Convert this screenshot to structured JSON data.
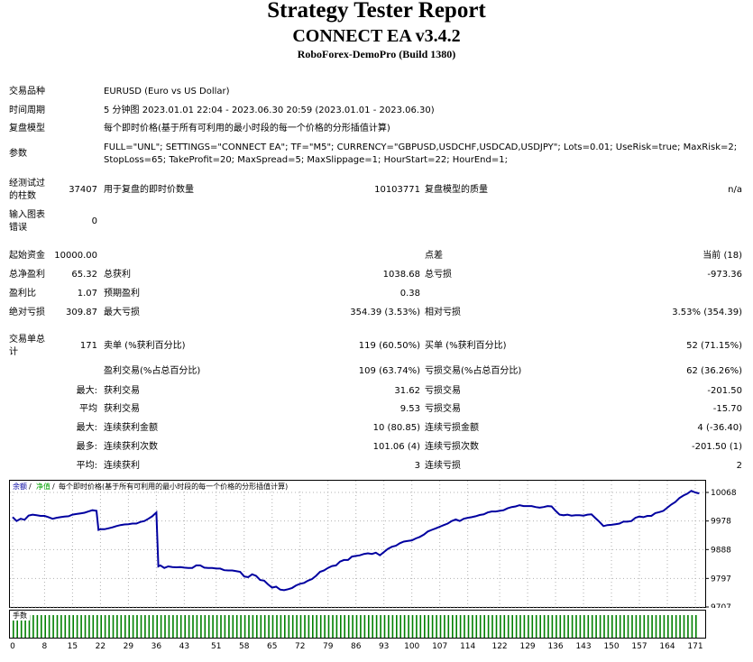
{
  "header": {
    "title": "Strategy Tester Report",
    "ea": "CONNECT EA v3.4.2",
    "server": "RoboForex-DemoPro (Build 1380)"
  },
  "info": {
    "symbol_label": "交易品种",
    "symbol_value": "EURUSD (Euro vs US Dollar)",
    "period_label": "时间周期",
    "period_value": "5 分钟图 2023.01.01 22:04 - 2023.06.30 20:59 (2023.01.01 - 2023.06.30)",
    "model_label": "复盘模型",
    "model_value": "每个即时价格(基于所有可利用的最小时段的每一个价格的分形插值计算)",
    "params_label": "参数",
    "params_line1": "FULL=\"UNL\"; SETTINGS=\"CONNECT EA\"; TF=\"M5\"; CURRENCY=\"GBPUSD,USDCHF,USDCAD,USDJPY\"; Lots=0.01; UseRisk=true; MaxRisk=2;",
    "params_line2": "StopLoss=65; TakeProfit=20; MaxSpread=5; MaxSlippage=1; HourStart=22; HourEnd=1;",
    "bars_label_1": "经测试过",
    "bars_label_2": "的柱数",
    "bars_value": "37407",
    "ticks_label": "用于复盘的即时价数量",
    "ticks_value": "10103771",
    "quality_label": "复盘模型的质量",
    "quality_value": "n/a",
    "errors_label_1": "输入图表",
    "errors_label_2": "错误",
    "errors_value": "0"
  },
  "stats": {
    "deposit_label": "起始资金",
    "deposit_value": "10000.00",
    "spread_label": "点差",
    "spread_value": "当前 (18)",
    "net_label": "总净盈利",
    "net_value": "65.32",
    "gross_profit_label": "总获利",
    "gross_profit_value": "1038.68",
    "gross_loss_label": "总亏损",
    "gross_loss_value": "-973.36",
    "pf_label": "盈利比",
    "pf_value": "1.07",
    "payoff_label": "预期盈利",
    "payoff_value": "0.38",
    "abs_dd_label": "绝对亏损",
    "abs_dd_value": "309.87",
    "max_dd_label": "最大亏损",
    "max_dd_value": "354.39 (3.53%)",
    "rel_dd_label": "相对亏损",
    "rel_dd_value": "3.53% (354.39)",
    "total_label_1": "交易单总",
    "total_label_2": "计",
    "total_value": "171",
    "short_label": "卖单 (%获利百分比)",
    "short_value": "119 (60.50%)",
    "long_label": "买单 (%获利百分比)",
    "long_value": "52 (71.15%)",
    "profit_trades_label": "盈利交易(%占总百分比)",
    "profit_trades_value": "109 (63.74%)",
    "loss_trades_label": "亏损交易(%占总百分比)",
    "loss_trades_value": "62 (36.26%)",
    "largest_prefix": "最大:",
    "largest_profit_label": "获利交易",
    "largest_profit_value": "31.62",
    "largest_loss_label": "亏损交易",
    "largest_loss_value": "-201.50",
    "avg_prefix": "平均",
    "avg_profit_label": "获利交易",
    "avg_profit_value": "9.53",
    "avg_loss_label": "亏损交易",
    "avg_loss_value": "-15.70",
    "max_cons_prefix": "最大:",
    "max_cons_win_label": "连续获利金额",
    "max_cons_win_value": "10 (80.85)",
    "max_cons_loss_label": "连续亏损金额",
    "max_cons_loss_value": "4 (-36.40)",
    "most_prefix": "最多:",
    "most_cons_win_label": "连续获利次数",
    "most_cons_win_value": "101.06 (4)",
    "most_cons_loss_label": "连续亏损次数",
    "most_cons_loss_value": "-201.50 (1)",
    "avg2_prefix": "平均:",
    "avg_cons_win_label": "连续获利",
    "avg_cons_win_value": "3",
    "avg_cons_loss_label": "连续亏损",
    "avg_cons_loss_value": "2"
  },
  "chart_data": {
    "type": "line",
    "legend": {
      "balance": "余额",
      "equity": "净值",
      "model": "每个即时价格(基于所有可利用的最小时段的每一个价格的分形插值计算)"
    },
    "volume_label": "手数",
    "colors": {
      "line": "#0000a0",
      "volume": "#008000",
      "balance_legend": "#0000a0",
      "equity_legend": "#00a000"
    },
    "x_ticks": [
      "0",
      "8",
      "15",
      "22",
      "29",
      "36",
      "43",
      "51",
      "58",
      "65",
      "72",
      "79",
      "86",
      "93",
      "100",
      "107",
      "114",
      "122",
      "129",
      "136",
      "143",
      "150",
      "157",
      "164",
      "171"
    ],
    "y_ticks": [
      "10068",
      "9978",
      "9888",
      "9797",
      "9707"
    ],
    "ylim": [
      9707,
      10068
    ],
    "x_max": 171,
    "series": [
      {
        "values": [
          [
            0,
            9990
          ],
          [
            1,
            9978
          ],
          [
            2,
            9985
          ],
          [
            3,
            9982
          ],
          [
            4,
            9995
          ],
          [
            5,
            9998
          ],
          [
            6,
            9996
          ],
          [
            7,
            9994
          ],
          [
            8,
            9994
          ],
          [
            9,
            9990
          ],
          [
            10,
            9985
          ],
          [
            11,
            9988
          ],
          [
            12,
            9990
          ],
          [
            13,
            9992
          ],
          [
            14,
            9993
          ],
          [
            15,
            9998
          ],
          [
            16,
            10000
          ],
          [
            17,
            10002
          ],
          [
            18,
            10004
          ],
          [
            19,
            10008
          ],
          [
            20,
            10012
          ],
          [
            21,
            10010
          ],
          [
            21.5,
            9950
          ],
          [
            22,
            9952
          ],
          [
            23,
            9952
          ],
          [
            24,
            9955
          ],
          [
            25,
            9958
          ],
          [
            26,
            9962
          ],
          [
            27,
            9965
          ],
          [
            28,
            9967
          ],
          [
            29,
            9968
          ],
          [
            30,
            9970
          ],
          [
            31,
            9970
          ],
          [
            32,
            9975
          ],
          [
            33,
            9978
          ],
          [
            34,
            9985
          ],
          [
            35,
            9993
          ],
          [
            36,
            10005
          ],
          [
            36.5,
            9835
          ],
          [
            37,
            9838
          ],
          [
            38,
            9830
          ],
          [
            39,
            9835
          ],
          [
            40,
            9833
          ],
          [
            41,
            9832
          ],
          [
            42,
            9833
          ],
          [
            43,
            9831
          ],
          [
            44,
            9830
          ],
          [
            45,
            9830
          ],
          [
            46,
            9838
          ],
          [
            47,
            9838
          ],
          [
            48,
            9831
          ],
          [
            49,
            9830
          ],
          [
            50,
            9830
          ],
          [
            51,
            9828
          ],
          [
            52,
            9828
          ],
          [
            53,
            9823
          ],
          [
            54,
            9822
          ],
          [
            55,
            9822
          ],
          [
            56,
            9820
          ],
          [
            57,
            9818
          ],
          [
            58,
            9803
          ],
          [
            59,
            9801
          ],
          [
            60,
            9810
          ],
          [
            61,
            9805
          ],
          [
            62,
            9792
          ],
          [
            63,
            9790
          ],
          [
            64,
            9778
          ],
          [
            65,
            9768
          ],
          [
            66,
            9771
          ],
          [
            67,
            9762
          ],
          [
            68,
            9760
          ],
          [
            69,
            9763
          ],
          [
            70,
            9767
          ],
          [
            71,
            9775
          ],
          [
            72,
            9780
          ],
          [
            73,
            9783
          ],
          [
            74,
            9790
          ],
          [
            75,
            9795
          ],
          [
            76,
            9805
          ],
          [
            77,
            9818
          ],
          [
            78,
            9822
          ],
          [
            79,
            9830
          ],
          [
            80,
            9836
          ],
          [
            81,
            9838
          ],
          [
            82,
            9850
          ],
          [
            83,
            9855
          ],
          [
            84,
            9855
          ],
          [
            85,
            9866
          ],
          [
            86,
            9868
          ],
          [
            87,
            9870
          ],
          [
            88,
            9874
          ],
          [
            89,
            9876
          ],
          [
            90,
            9874
          ],
          [
            91,
            9878
          ],
          [
            92,
            9870
          ],
          [
            93,
            9880
          ],
          [
            94,
            9890
          ],
          [
            95,
            9897
          ],
          [
            96,
            9900
          ],
          [
            97,
            9908
          ],
          [
            98,
            9913
          ],
          [
            99,
            9915
          ],
          [
            100,
            9917
          ],
          [
            101,
            9923
          ],
          [
            102,
            9928
          ],
          [
            103,
            9935
          ],
          [
            104,
            9945
          ],
          [
            105,
            9950
          ],
          [
            106,
            9955
          ],
          [
            107,
            9960
          ],
          [
            108,
            9965
          ],
          [
            109,
            9970
          ],
          [
            110,
            9978
          ],
          [
            111,
            9983
          ],
          [
            112,
            9978
          ],
          [
            113,
            9985
          ],
          [
            114,
            9988
          ],
          [
            115,
            9990
          ],
          [
            116,
            9993
          ],
          [
            117,
            9997
          ],
          [
            118,
            9999
          ],
          [
            119,
            10005
          ],
          [
            120,
            10008
          ],
          [
            121,
            10008
          ],
          [
            122,
            10010
          ],
          [
            123,
            10012
          ],
          [
            124,
            10018
          ],
          [
            125,
            10022
          ],
          [
            126,
            10024
          ],
          [
            127,
            10028
          ],
          [
            128,
            10025
          ],
          [
            129,
            10025
          ],
          [
            130,
            10025
          ],
          [
            131,
            10022
          ],
          [
            132,
            10020
          ],
          [
            133,
            10022
          ],
          [
            134,
            10025
          ],
          [
            135,
            10024
          ],
          [
            136,
            10010
          ],
          [
            137,
            9998
          ],
          [
            138,
            9996
          ],
          [
            139,
            9998
          ],
          [
            140,
            9995
          ],
          [
            141,
            9996
          ],
          [
            142,
            9996
          ],
          [
            143,
            9995
          ],
          [
            144,
            9998
          ],
          [
            145,
            9999
          ],
          [
            146,
            9987
          ],
          [
            147,
            9975
          ],
          [
            148,
            9962
          ],
          [
            149,
            9965
          ],
          [
            150,
            9966
          ],
          [
            151,
            9968
          ],
          [
            152,
            9970
          ],
          [
            153,
            9976
          ],
          [
            154,
            9976
          ],
          [
            155,
            9978
          ],
          [
            156,
            9988
          ],
          [
            157,
            9992
          ],
          [
            158,
            9990
          ],
          [
            159,
            9994
          ],
          [
            160,
            9994
          ],
          [
            161,
            10003
          ],
          [
            162,
            10006
          ],
          [
            163,
            10010
          ],
          [
            164,
            10020
          ],
          [
            165,
            10030
          ],
          [
            166,
            10038
          ],
          [
            167,
            10050
          ],
          [
            168,
            10058
          ],
          [
            169,
            10064
          ],
          [
            170,
            10073
          ],
          [
            171,
            10068
          ],
          [
            172,
            10065
          ]
        ]
      }
    ]
  }
}
